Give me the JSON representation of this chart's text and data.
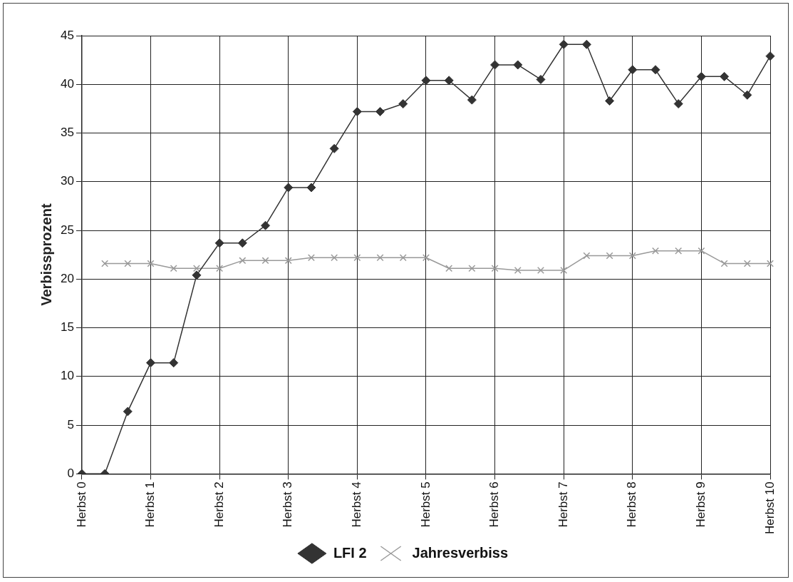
{
  "chart_data": {
    "type": "line",
    "ylabel": "Verbissprozent",
    "categories": [
      "Herbst 0",
      null,
      null,
      "Herbst 1",
      null,
      null,
      "Herbst 2",
      null,
      null,
      "Herbst 3",
      null,
      null,
      "Herbst 4",
      null,
      null,
      "Herbst 5",
      null,
      null,
      "Herbst 6",
      null,
      null,
      "Herbst 7",
      null,
      null,
      "Herbst 8",
      null,
      null,
      "Herbst 9",
      null,
      null,
      "Herbst 10"
    ],
    "series": [
      {
        "name": "LFI 2",
        "color": "#333333",
        "marker": "diamond",
        "values": [
          0,
          0,
          6.4,
          11.4,
          11.4,
          20.4,
          23.7,
          23.7,
          25.5,
          29.4,
          29.4,
          33.4,
          37.2,
          37.2,
          38.0,
          40.4,
          40.4,
          38.4,
          42.0,
          42.0,
          40.5,
          44.1,
          44.1,
          38.3,
          41.5,
          41.5,
          38.0,
          40.8,
          40.8,
          38.9,
          42.9
        ]
      },
      {
        "name": "Jahresverbiss",
        "color": "#999999",
        "marker": "cross",
        "values": [
          null,
          21.6,
          21.6,
          21.6,
          21.1,
          21.1,
          21.1,
          21.9,
          21.9,
          21.9,
          22.2,
          22.2,
          22.2,
          22.2,
          22.2,
          22.2,
          21.1,
          21.1,
          21.1,
          20.9,
          20.9,
          20.9,
          22.4,
          22.4,
          22.4,
          22.9,
          22.9,
          22.9,
          21.6,
          21.6,
          21.6
        ]
      }
    ],
    "ylim": [
      0,
      45
    ],
    "yticks": [
      0,
      5,
      10,
      15,
      20,
      25,
      30,
      35,
      40,
      45
    ],
    "grid": true,
    "legend": "bottom",
    "line_style": "solid"
  }
}
